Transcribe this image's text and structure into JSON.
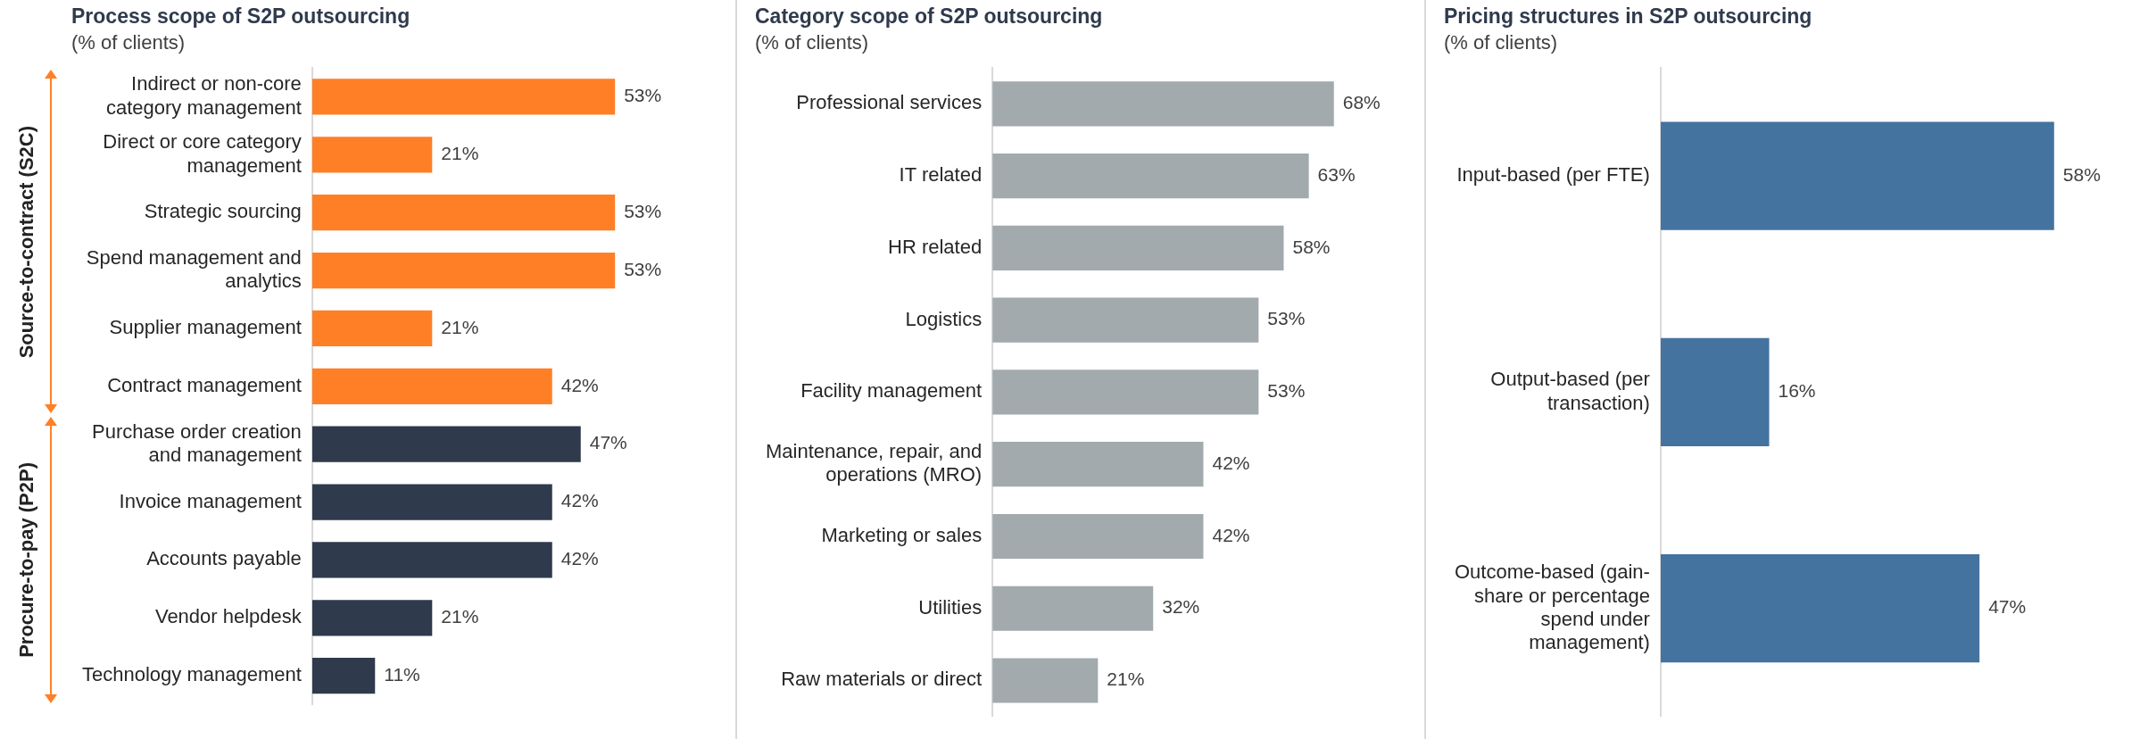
{
  "chart_data": [
    {
      "type": "bar",
      "orientation": "horizontal",
      "title": "Process scope of S2P outsourcing",
      "subtitle": "(% of clients)",
      "categories": [
        "Indirect or non-core category management",
        "Direct or core category management",
        "Strategic sourcing",
        "Spend management and analytics",
        "Supplier management",
        "Contract management",
        "Purchase order creation and management",
        "Invoice management",
        "Accounts payable",
        "Vendor helpdesk",
        "Technology management"
      ],
      "values": [
        53,
        21,
        53,
        53,
        21,
        42,
        47,
        42,
        42,
        21,
        11
      ],
      "colors": [
        "#ff7f27",
        "#ff7f27",
        "#ff7f27",
        "#ff7f27",
        "#ff7f27",
        "#ff7f27",
        "#2f3a4c",
        "#2f3a4c",
        "#2f3a4c",
        "#2f3a4c",
        "#2f3a4c"
      ],
      "value_labels": [
        "53%",
        "21%",
        "53%",
        "53%",
        "21%",
        "42%",
        "47%",
        "42%",
        "42%",
        "21%",
        "11%"
      ],
      "annotations": [
        "Source-to-contract (S2C)",
        "Procure-to-pay (P2P)"
      ]
    },
    {
      "type": "bar",
      "orientation": "horizontal",
      "title": "Category scope of S2P outsourcing",
      "subtitle": "(% of clients)",
      "categories": [
        "Professional services",
        "IT related",
        "HR related",
        "Logistics",
        "Facility management",
        "Maintenance, repair, and operations (MRO)",
        "Marketing or sales",
        "Utilities",
        "Raw materials or direct"
      ],
      "values": [
        68,
        63,
        58,
        53,
        53,
        42,
        42,
        32,
        21
      ],
      "color": "#a2aaad",
      "value_labels": [
        "68%",
        "63%",
        "58%",
        "53%",
        "53%",
        "42%",
        "42%",
        "32%",
        "21%"
      ]
    },
    {
      "type": "bar",
      "orientation": "horizontal",
      "title": "Pricing structures in S2P outsourcing",
      "subtitle": "(% of clients)",
      "categories": [
        "Input-based (per FTE)",
        "Output-based (per transaction)",
        "Outcome-based (gain-share or percentage spend under management)"
      ],
      "values": [
        58,
        16,
        47
      ],
      "color": "#44739f",
      "value_labels": [
        "58%",
        "16%",
        "47%"
      ]
    }
  ]
}
